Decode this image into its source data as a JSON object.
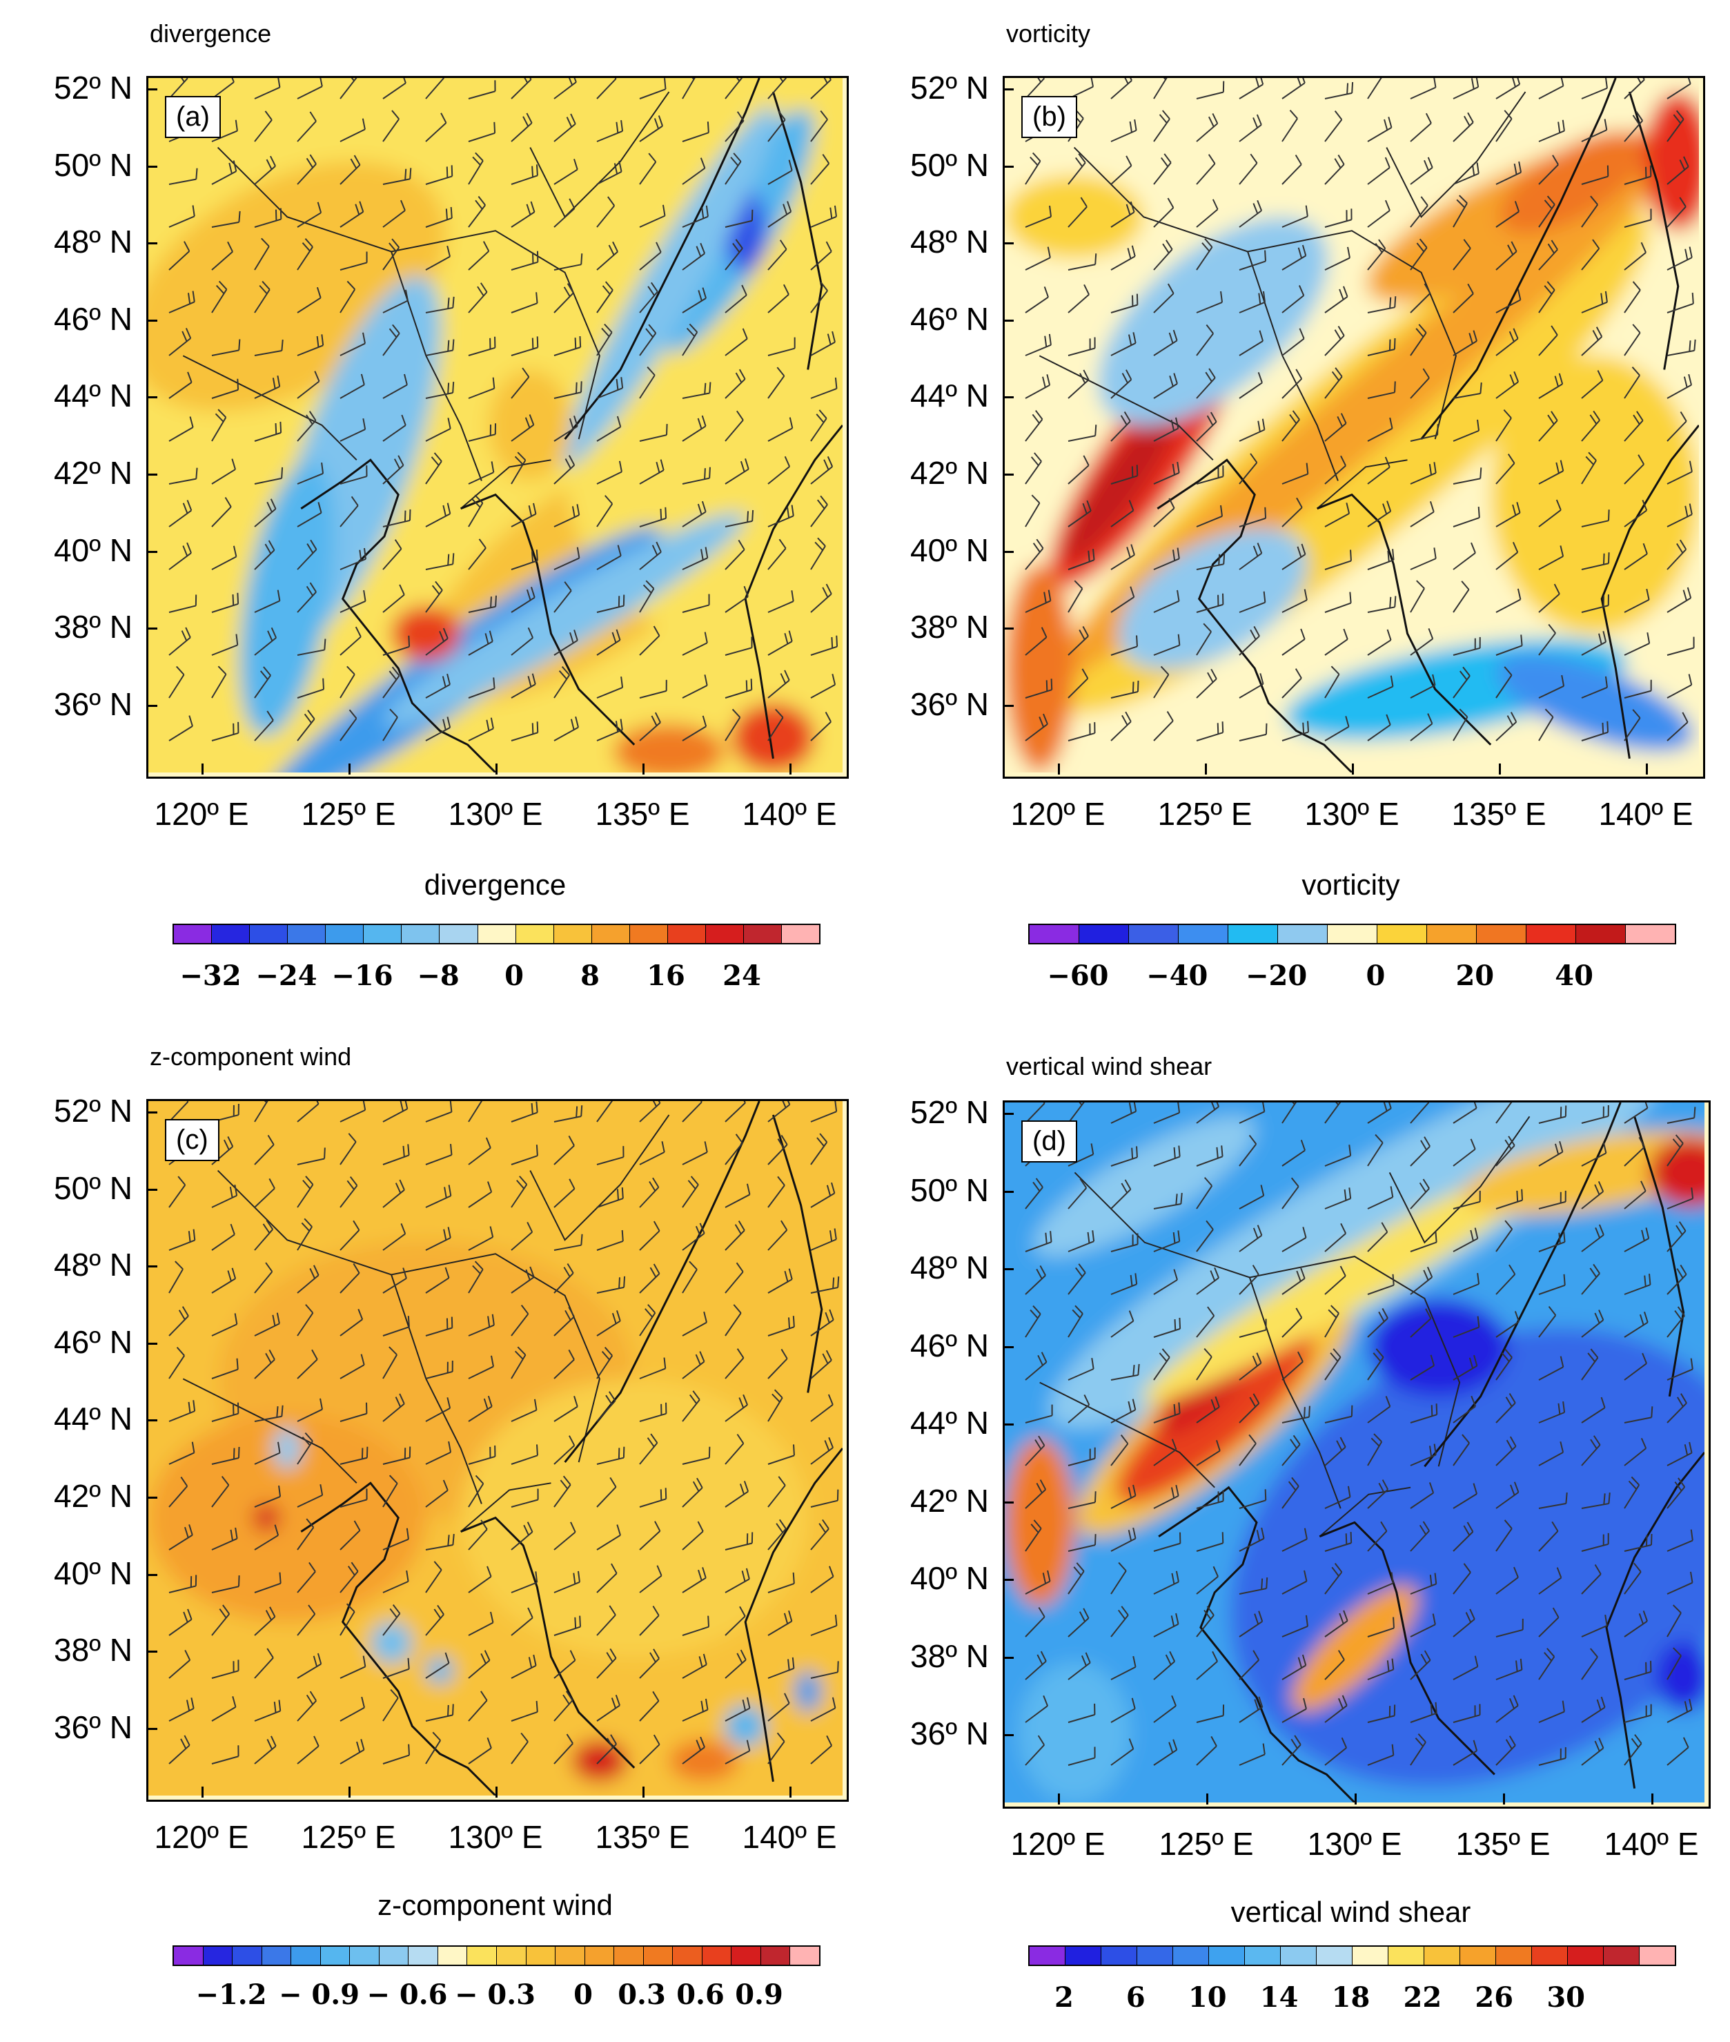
{
  "lat_labels": [
    "52º N",
    "50º N",
    "48º N",
    "46º N",
    "44º N",
    "42º N",
    "40º N",
    "38º N",
    "36º N"
  ],
  "lon_labels": [
    "120º E",
    "125º E",
    "130º E",
    "135º E",
    "140º E"
  ],
  "panels": [
    {
      "title": "divergence",
      "label": "(a)",
      "colorbar_title": "divergence",
      "colorbar_labels": [
        "−32",
        "−24",
        "−16",
        "−8",
        "0",
        "8",
        "16",
        "24"
      ],
      "colors": [
        "#8a2be2",
        "#2626e0",
        "#2d4fe6",
        "#3b78e8",
        "#3d9bec",
        "#55b6ef",
        "#7ec3ee",
        "#a8d4f0",
        "#fff7c6",
        "#fbe25c",
        "#f8c23a",
        "#f5a12d",
        "#f07a21",
        "#e8401e",
        "#d61e1e",
        "#c0262e",
        "#ffb3b3"
      ]
    },
    {
      "title": "vorticity",
      "label": "(b)",
      "colorbar_title": "vorticity",
      "colorbar_labels": [
        "−60",
        "−40",
        "−20",
        "0",
        "20",
        "40"
      ],
      "colors": [
        "#8a2be2",
        "#2020e0",
        "#3b5fe6",
        "#3d8ef0",
        "#22bbf2",
        "#8fc9ef",
        "#fff7c6",
        "#fbd33a",
        "#f6a22b",
        "#f07622",
        "#e82e1e",
        "#c21a1a",
        "#ffb3b3"
      ]
    },
    {
      "title": "z-component wind",
      "label": "(c)",
      "colorbar_title": "z-component wind",
      "colorbar_labels": [
        "−1.2",
        "− 0.9",
        "− 0.6",
        "− 0.3",
        "0",
        "0.3",
        "0.6",
        "0.9"
      ],
      "colors": [
        "#8a2be2",
        "#2626e0",
        "#2d4fe6",
        "#3b78e8",
        "#3d9bec",
        "#55b6ef",
        "#6dbfef",
        "#8ccaf0",
        "#b6dcf2",
        "#fff7c6",
        "#fbe25c",
        "#f9d04a",
        "#f8c23a",
        "#f6b034",
        "#f5a12d",
        "#f28c27",
        "#f07a21",
        "#ec5e1f",
        "#e8401e",
        "#d61e1e",
        "#c0262e",
        "#ffb3b3"
      ]
    },
    {
      "title": "vertical wind shear",
      "label": "(d)",
      "colorbar_title": "vertical wind shear",
      "colorbar_labels": [
        "2",
        "6",
        "10",
        "14",
        "18",
        "22",
        "26",
        "30"
      ],
      "colors": [
        "#8a2be2",
        "#2020e0",
        "#2d4fe6",
        "#3468e8",
        "#3b86ec",
        "#3ea2ef",
        "#5bb8f0",
        "#8ccaf0",
        "#b6dcf2",
        "#fff7c6",
        "#fbe25c",
        "#f8c23a",
        "#f6a22b",
        "#f07a21",
        "#e8401e",
        "#d61e1e",
        "#c0262e",
        "#ffb3b3"
      ]
    }
  ]
}
